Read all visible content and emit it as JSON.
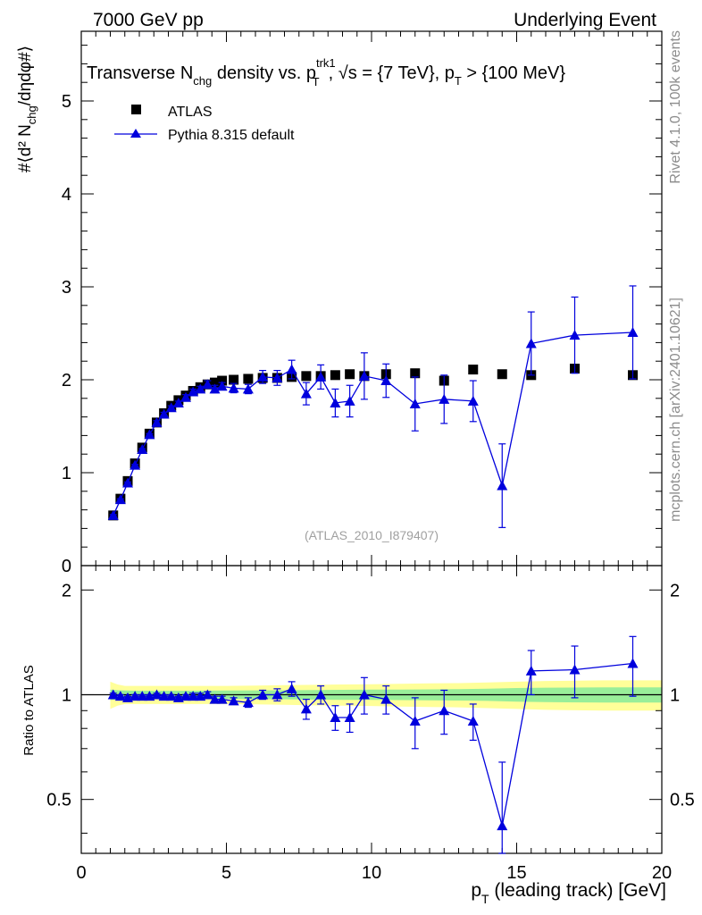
{
  "header": {
    "left": "7000 GeV pp",
    "right": "Underlying Event"
  },
  "side": {
    "rivet": "Rivet 4.1.0,  100k events",
    "mcplots": "mcplots.cern.ch [arXiv:2401.10621]"
  },
  "plot_title": {
    "part1": "Transverse N",
    "sub1": "chg",
    "part2": " density vs. p",
    "sup1": "trk1",
    "sub2": "T",
    "part3": ", √s = {7 TeV}, p",
    "sub3": "T",
    "part4": " > {100 MeV}"
  },
  "legend": {
    "data_label": "ATLAS",
    "mc_label": "Pythia 8.315 default"
  },
  "watermark": "(ATLAS_2010_I879407)",
  "colors": {
    "mc": "#0000dd",
    "band_inner": "#99ee99",
    "band_outer": "#ffff99",
    "data": "#000000"
  },
  "chart_data": [
    {
      "type": "scatter",
      "panel": "main",
      "ylabel": "#⟨d² N",
      "ylabel_sub": "chg",
      "ylabel_rest": "/dηdφ#⟩",
      "xlim": [
        0,
        20
      ],
      "ylim": [
        0,
        5.75
      ],
      "yticks": [
        0,
        1,
        2,
        3,
        4,
        5
      ],
      "series": [
        {
          "name": "ATLAS",
          "marker": "square",
          "x": [
            1.1,
            1.35,
            1.6,
            1.85,
            2.1,
            2.35,
            2.6,
            2.85,
            3.1,
            3.35,
            3.6,
            3.85,
            4.1,
            4.35,
            4.6,
            4.85,
            5.25,
            5.75,
            6.25,
            6.75,
            7.25,
            7.75,
            8.25,
            8.75,
            9.25,
            9.75,
            10.5,
            11.5,
            12.5,
            13.5,
            14.5,
            15.5,
            17.0,
            19.0
          ],
          "y": [
            0.54,
            0.72,
            0.91,
            1.1,
            1.27,
            1.42,
            1.54,
            1.64,
            1.72,
            1.78,
            1.83,
            1.88,
            1.92,
            1.95,
            1.97,
            1.99,
            2.0,
            2.01,
            2.02,
            2.02,
            2.03,
            2.04,
            2.04,
            2.05,
            2.06,
            2.04,
            2.06,
            2.07,
            1.99,
            2.11,
            2.06,
            2.05,
            2.12,
            2.05
          ]
        },
        {
          "name": "Pythia 8.315 default",
          "marker": "triangle",
          "x": [
            1.1,
            1.35,
            1.6,
            1.85,
            2.1,
            2.35,
            2.6,
            2.85,
            3.1,
            3.35,
            3.6,
            3.85,
            4.1,
            4.35,
            4.6,
            4.85,
            5.25,
            5.75,
            6.25,
            6.75,
            7.25,
            7.75,
            8.25,
            8.75,
            9.25,
            9.75,
            10.5,
            11.5,
            12.5,
            13.5,
            14.5,
            15.5,
            17.0,
            19.0
          ],
          "y": [
            0.54,
            0.71,
            0.89,
            1.08,
            1.25,
            1.41,
            1.54,
            1.63,
            1.7,
            1.75,
            1.81,
            1.87,
            1.9,
            1.95,
            1.9,
            1.93,
            1.91,
            1.9,
            2.03,
            2.02,
            2.11,
            1.85,
            2.03,
            1.75,
            1.77,
            2.04,
            1.99,
            1.74,
            1.79,
            1.77,
            0.86,
            2.39,
            2.48,
            2.51
          ],
          "yerr": [
            0.01,
            0.01,
            0.01,
            0.01,
            0.01,
            0.01,
            0.02,
            0.02,
            0.02,
            0.02,
            0.03,
            0.03,
            0.03,
            0.04,
            0.04,
            0.04,
            0.05,
            0.05,
            0.07,
            0.08,
            0.1,
            0.12,
            0.13,
            0.15,
            0.17,
            0.25,
            0.18,
            0.29,
            0.26,
            0.22,
            0.45,
            0.34,
            0.41,
            0.5
          ]
        }
      ]
    },
    {
      "type": "line",
      "panel": "ratio",
      "ylabel": "Ratio to ATLAS",
      "xlabel": "p",
      "xlabel_sub": "T",
      "xlabel_rest": " (leading track) [GeV]",
      "xlim": [
        0,
        20
      ],
      "ylim": [
        0.35,
        2.35
      ],
      "yticks": [
        0.5,
        1,
        2
      ],
      "xticks": [
        0,
        5,
        10,
        15,
        20
      ],
      "band_x": [
        1.0,
        1.25,
        1.5,
        2,
        3,
        4,
        5,
        6,
        7,
        8,
        9,
        10,
        11,
        12,
        13,
        14,
        15,
        16,
        18,
        20
      ],
      "band_inner": [
        0.035,
        0.03,
        0.028,
        0.026,
        0.026,
        0.027,
        0.028,
        0.029,
        0.03,
        0.032,
        0.033,
        0.034,
        0.035,
        0.036,
        0.038,
        0.04,
        0.045,
        0.048,
        0.05,
        0.05
      ],
      "band_outer": [
        0.09,
        0.07,
        0.06,
        0.06,
        0.06,
        0.06,
        0.06,
        0.062,
        0.065,
        0.068,
        0.07,
        0.072,
        0.075,
        0.078,
        0.08,
        0.085,
        0.09,
        0.095,
        0.1,
        0.1
      ],
      "series": [
        {
          "name": "Pythia 8.315 default",
          "x": [
            1.1,
            1.35,
            1.6,
            1.85,
            2.1,
            2.35,
            2.6,
            2.85,
            3.1,
            3.35,
            3.6,
            3.85,
            4.1,
            4.35,
            4.6,
            4.85,
            5.25,
            5.75,
            6.25,
            6.75,
            7.25,
            7.75,
            8.25,
            8.75,
            9.25,
            9.75,
            10.5,
            11.5,
            12.5,
            13.5,
            14.5,
            15.5,
            17.0,
            19.0
          ],
          "y": [
            1.0,
            0.99,
            0.98,
            0.99,
            0.99,
            0.99,
            1.0,
            0.99,
            0.99,
            0.98,
            0.99,
            0.99,
            0.99,
            1.0,
            0.97,
            0.97,
            0.96,
            0.95,
            1.0,
            1.0,
            1.04,
            0.91,
            1.0,
            0.86,
            0.86,
            1.0,
            0.97,
            0.84,
            0.9,
            0.84,
            0.42,
            1.17,
            1.18,
            1.23
          ],
          "yerr": [
            0.01,
            0.01,
            0.01,
            0.01,
            0.01,
            0.01,
            0.01,
            0.01,
            0.01,
            0.01,
            0.01,
            0.02,
            0.02,
            0.02,
            0.02,
            0.02,
            0.02,
            0.03,
            0.03,
            0.04,
            0.05,
            0.06,
            0.06,
            0.07,
            0.08,
            0.12,
            0.09,
            0.14,
            0.13,
            0.1,
            0.22,
            0.17,
            0.2,
            0.24
          ]
        }
      ]
    }
  ]
}
